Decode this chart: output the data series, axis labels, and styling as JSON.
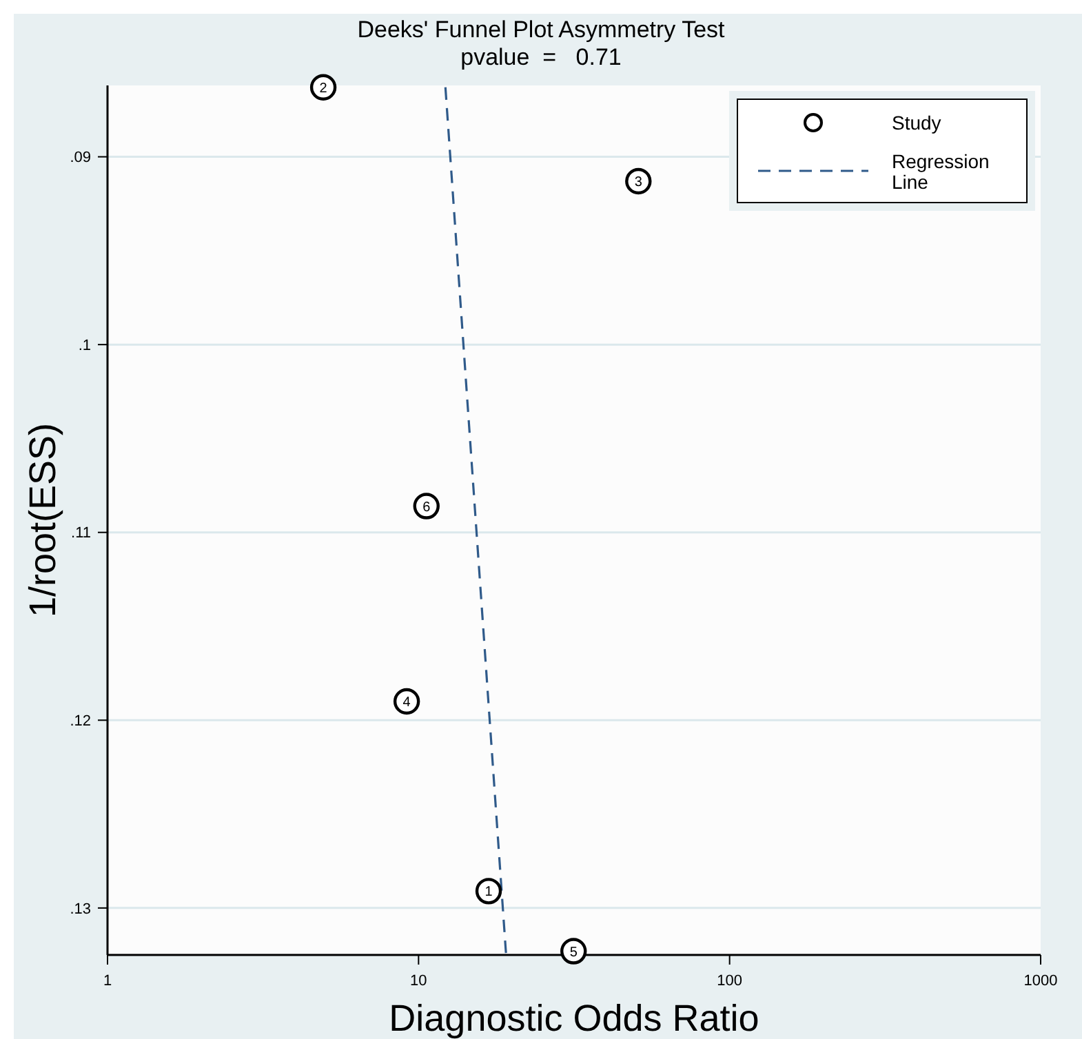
{
  "chart_data": {
    "type": "scatter",
    "title": "Deeks' Funnel Plot Asymmetry Test",
    "subtitle": "pvalue  =   0.71",
    "xlabel": "Diagnostic Odds Ratio",
    "ylabel": "1/root(ESS)",
    "log": "x",
    "xlim": [
      1,
      1000
    ],
    "xticks": [
      1,
      10,
      100,
      1000
    ],
    "ylim": [
      0.1325,
      0.0862
    ],
    "yticks": [
      {
        "value": 0.09,
        "label": ".09"
      },
      {
        "value": 0.1,
        "label": ".1"
      },
      {
        "value": 0.11,
        "label": ".11"
      },
      {
        "value": 0.12,
        "label": ".12"
      },
      {
        "value": 0.13,
        "label": ".13"
      }
    ],
    "grid": "y",
    "legend": "top right",
    "marker": "circle",
    "series": [
      {
        "name": "Study",
        "color": "#000000",
        "x": [
          16.8,
          4.94,
          50.9,
          9.16,
          31.5,
          10.6
        ],
        "values": [
          0.1291,
          0.0863,
          0.0913,
          0.119,
          0.1323,
          0.1086
        ]
      },
      {
        "name": "Regression Line",
        "type": "line",
        "color": "#2f5a8a",
        "line_style": "dashed",
        "marker": "none",
        "x": [
          12.2,
          19.1
        ],
        "values": [
          0.0863,
          0.1324
        ]
      }
    ],
    "annotations": [
      {
        "text": "1",
        "x": 16.8,
        "y": 0.1291
      },
      {
        "text": "2",
        "x": 4.94,
        "y": 0.0863
      },
      {
        "text": "3",
        "x": 50.9,
        "y": 0.0913
      },
      {
        "text": "4",
        "x": 9.16,
        "y": 0.119
      },
      {
        "text": "5",
        "x": 31.5,
        "y": 0.1323
      },
      {
        "text": "6",
        "x": 10.6,
        "y": 0.1086
      }
    ]
  }
}
